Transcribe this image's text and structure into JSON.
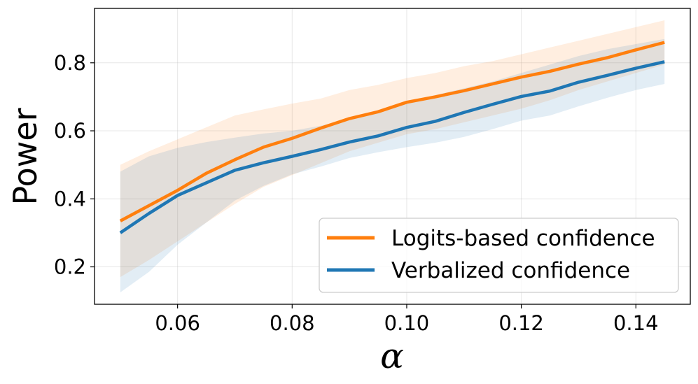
{
  "chart_data": {
    "type": "line",
    "title": "",
    "xlabel": "α",
    "ylabel": "Power",
    "xlim": [
      0.0455,
      0.1495
    ],
    "ylim": [
      0.09,
      0.96
    ],
    "xticks": [
      0.06,
      0.08,
      0.1,
      0.12,
      0.14
    ],
    "xtick_labels": [
      "0.06",
      "0.08",
      "0.10",
      "0.12",
      "0.14"
    ],
    "yticks": [
      0.2,
      0.4,
      0.6,
      0.8
    ],
    "ytick_labels": [
      "0.2",
      "0.4",
      "0.6",
      "0.8"
    ],
    "grid": true,
    "legend_position": "lower-right",
    "x": [
      0.05,
      0.055,
      0.06,
      0.065,
      0.07,
      0.075,
      0.08,
      0.085,
      0.09,
      0.095,
      0.1,
      0.105,
      0.11,
      0.115,
      0.12,
      0.125,
      0.13,
      0.135,
      0.14,
      0.145
    ],
    "series": [
      {
        "name": "Logits-based confidence",
        "color": "#ff7f0e",
        "values": [
          0.335,
          0.38,
          0.425,
          0.475,
          0.515,
          0.552,
          0.578,
          0.608,
          0.636,
          0.656,
          0.684,
          0.7,
          0.718,
          0.738,
          0.758,
          0.775,
          0.796,
          0.815,
          0.838,
          0.86
        ],
        "band_upper": [
          0.5,
          0.54,
          0.575,
          0.61,
          0.645,
          0.663,
          0.68,
          0.695,
          0.72,
          0.735,
          0.755,
          0.77,
          0.79,
          0.805,
          0.825,
          0.845,
          0.865,
          0.885,
          0.905,
          0.925
        ],
        "band_lower": [
          0.17,
          0.22,
          0.275,
          0.33,
          0.385,
          0.435,
          0.47,
          0.505,
          0.54,
          0.565,
          0.59,
          0.605,
          0.625,
          0.645,
          0.665,
          0.69,
          0.72,
          0.745,
          0.77,
          0.795
        ]
      },
      {
        "name": "Verbalized confidence",
        "color": "#1f77b4",
        "values": [
          0.3,
          0.357,
          0.41,
          0.447,
          0.484,
          0.506,
          0.525,
          0.545,
          0.567,
          0.585,
          0.61,
          0.628,
          0.654,
          0.678,
          0.701,
          0.717,
          0.743,
          0.763,
          0.784,
          0.803
        ],
        "band_upper": [
          0.48,
          0.525,
          0.55,
          0.567,
          0.58,
          0.592,
          0.6,
          0.615,
          0.635,
          0.655,
          0.68,
          0.705,
          0.725,
          0.745,
          0.77,
          0.795,
          0.82,
          0.84,
          0.855,
          0.87
        ],
        "band_lower": [
          0.125,
          0.185,
          0.265,
          0.33,
          0.395,
          0.438,
          0.472,
          0.495,
          0.52,
          0.537,
          0.552,
          0.565,
          0.582,
          0.605,
          0.63,
          0.645,
          0.672,
          0.697,
          0.72,
          0.738
        ]
      }
    ]
  }
}
